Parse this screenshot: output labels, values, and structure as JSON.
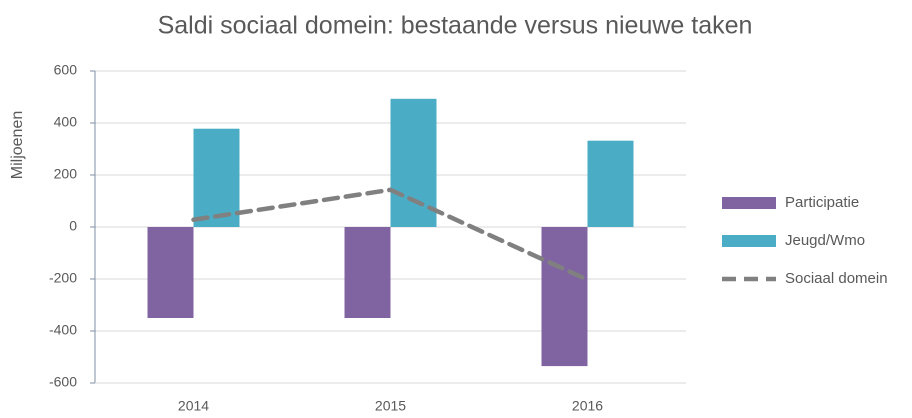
{
  "chart_data": {
    "type": "bar",
    "title": "Saldi sociaal domein: bestaande versus nieuwe taken",
    "y_label": "Miljoenen",
    "categories": [
      "2014",
      "2015",
      "2016"
    ],
    "series": [
      {
        "name": "Participatie",
        "type": "bar",
        "color": "#8064a2",
        "values": [
          -350,
          -350,
          -535
        ]
      },
      {
        "name": "Jeugd/Wmo",
        "type": "bar",
        "color": "#4bacc6",
        "values": [
          378,
          493,
          332
        ]
      },
      {
        "name": "Sociaal domein",
        "type": "line",
        "dashed": true,
        "color": "#808080",
        "values": [
          28,
          143,
          -203
        ]
      }
    ],
    "ylim": [
      -600,
      600
    ],
    "yticks": [
      -600,
      -400,
      -200,
      0,
      200,
      400,
      600
    ],
    "grid": true,
    "legend": "right"
  }
}
